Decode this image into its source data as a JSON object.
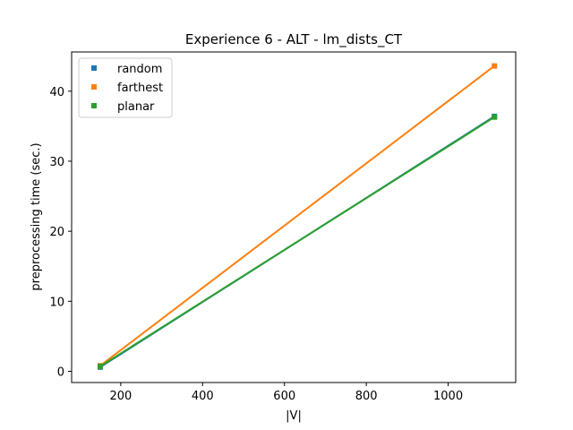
{
  "chart_data": {
    "type": "line",
    "title": "Experience 6 - ALT - lm_dists_CT",
    "xlabel": "|V|",
    "ylabel": "preprocessing time (sec.)",
    "xlim": [
      80,
      1165
    ],
    "ylim": [
      -1.6,
      45.6
    ],
    "xticks": [
      200,
      400,
      600,
      800,
      1000
    ],
    "yticks": [
      0,
      10,
      20,
      30,
      40
    ],
    "legend_position": "upper-left",
    "series": [
      {
        "name": "random",
        "color": "#1f77b4",
        "x": [
          150,
          1113
        ],
        "y": [
          0.6,
          36.4
        ]
      },
      {
        "name": "farthest",
        "color": "#ff7f0e",
        "x": [
          150,
          1113
        ],
        "y": [
          0.8,
          43.6
        ]
      },
      {
        "name": "planar",
        "color": "#2ca02c",
        "x": [
          150,
          1113
        ],
        "y": [
          0.7,
          36.3
        ]
      }
    ]
  }
}
